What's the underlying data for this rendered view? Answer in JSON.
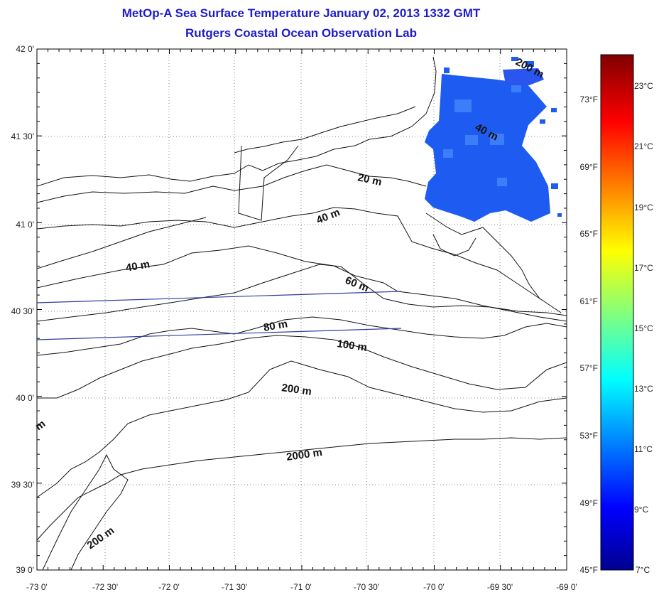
{
  "title": {
    "line1": "MetOp-A Sea Surface Temperature January 02, 2013 1332 GMT",
    "line2": "Rutgers Coastal Ocean Observation Lab"
  },
  "axes": {
    "lat_labels": [
      "42 0'",
      "41 30'",
      "41 0'",
      "40 30'",
      "40 0'",
      "39 30'",
      "39 0'"
    ],
    "lon_labels": [
      "-73 0'",
      "-72 30'",
      "-72 0'",
      "-71 30'",
      "-71 0'",
      "-70 30'",
      "-70 0'",
      "-69 30'",
      "-69 0'"
    ]
  },
  "colorbar": {
    "celsius_labels": [
      "23°C",
      "21°C",
      "19°C",
      "17°C",
      "15°C",
      "13°C",
      "11°C",
      "9°C",
      "7°C"
    ],
    "fahrenheit_labels": [
      "73°F",
      "69°F",
      "65°F",
      "61°F",
      "57°F",
      "53°F",
      "49°F",
      "45°F"
    ],
    "range_c": [
      7,
      24.5
    ]
  },
  "depth_contours": {
    "labels": [
      "200 m",
      "40 m",
      "20 m",
      "40 m",
      "40 m",
      "60 m",
      "80 m",
      "100 m",
      "200 m",
      "2000 m",
      "200 m",
      "m"
    ]
  },
  "colors": {
    "title": "#1c1cc8",
    "sst_patch": "#1e5bf0",
    "transect": "#2c3c9c"
  }
}
